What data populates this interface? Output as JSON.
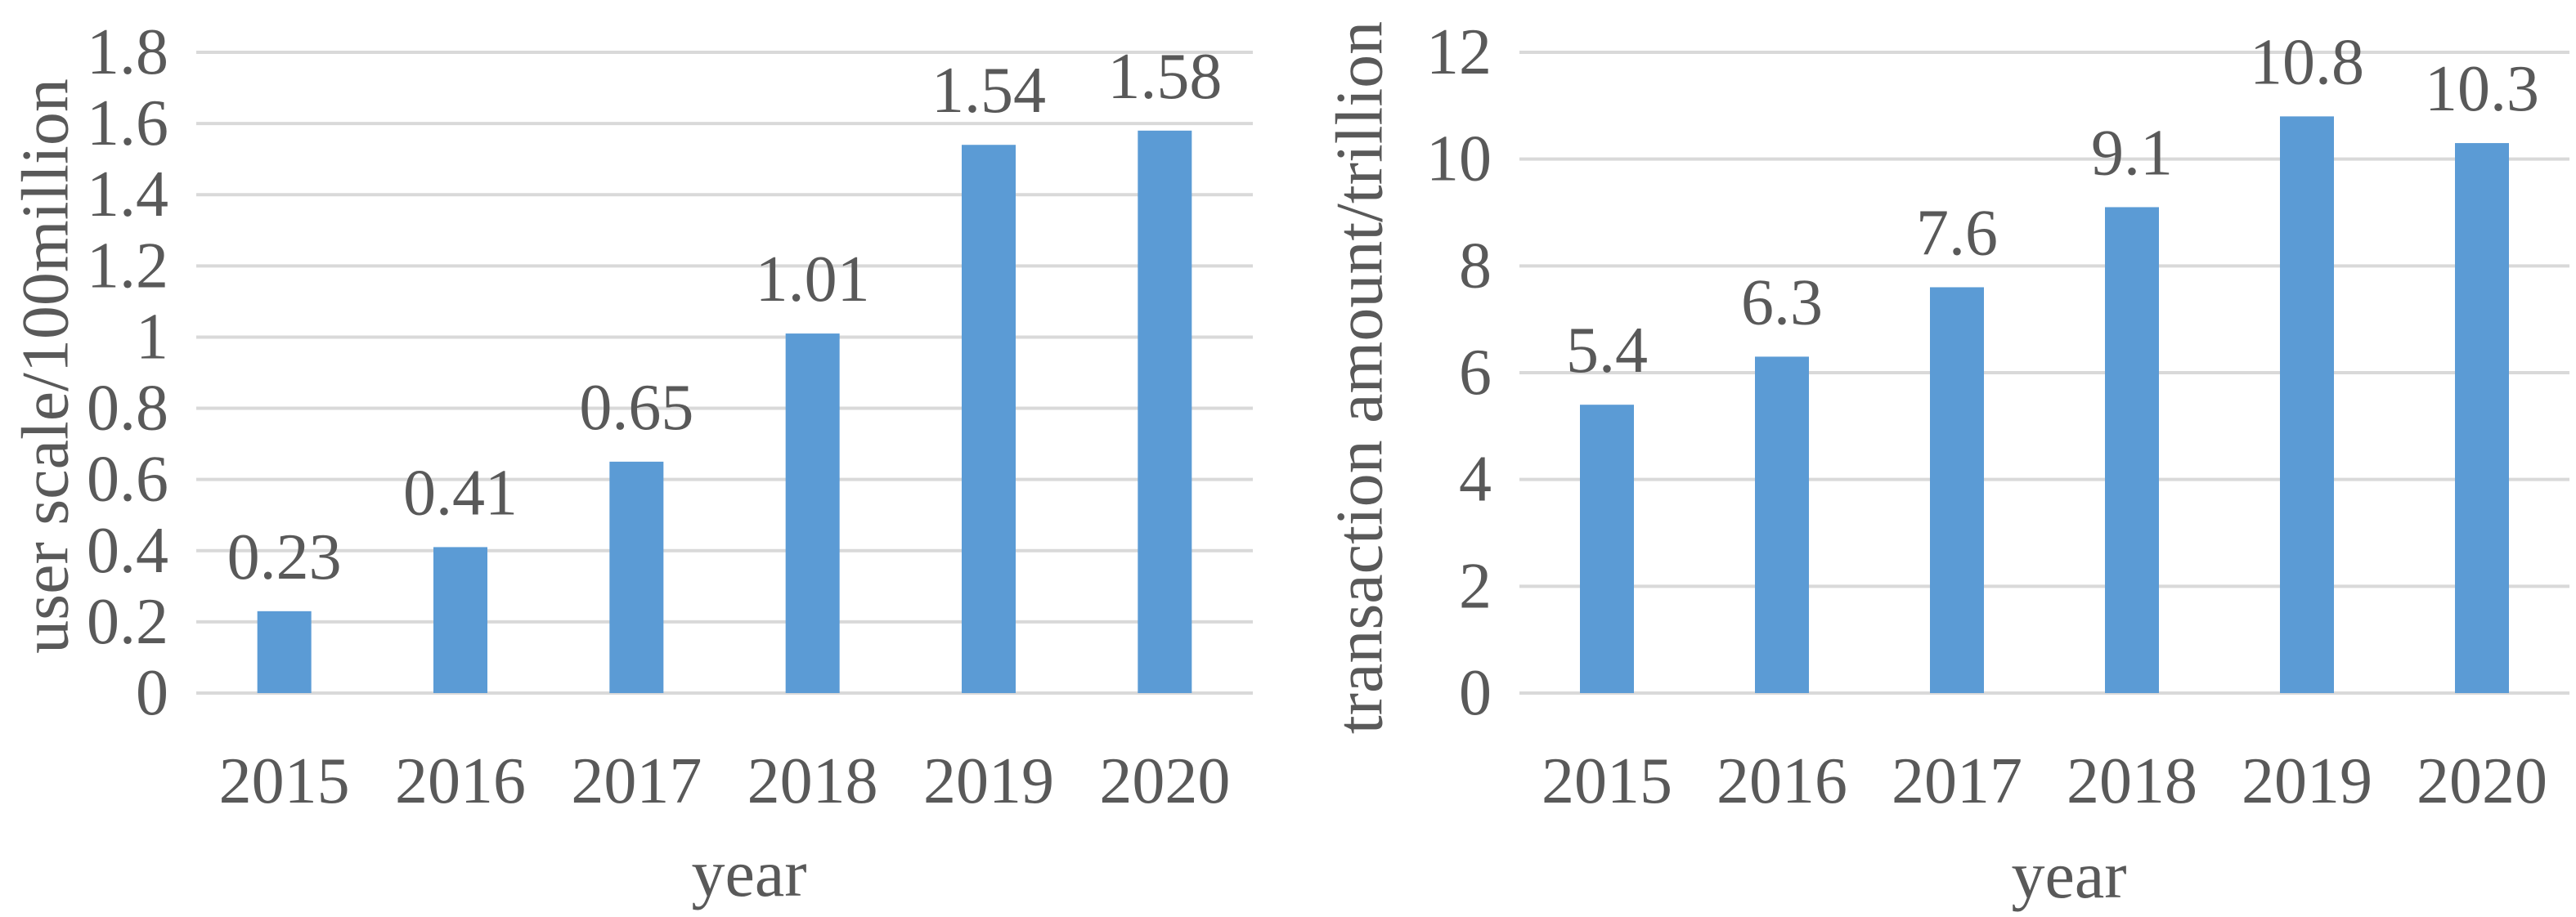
{
  "chart_data": [
    {
      "type": "bar",
      "categories": [
        "2015",
        "2016",
        "2017",
        "2018",
        "2019",
        "2020"
      ],
      "values": [
        0.23,
        0.41,
        0.65,
        1.01,
        1.54,
        1.58
      ],
      "data_labels": [
        "0.23",
        "0.41",
        "0.65",
        "1.01",
        "1.54",
        "1.58"
      ],
      "yticks": [
        "0",
        "0.2",
        "0.4",
        "0.6",
        "0.8",
        "1",
        "1.2",
        "1.4",
        "1.6",
        "1.8"
      ],
      "ylim": [
        0,
        1.8
      ],
      "xlabel": "year",
      "ylabel": "user scale/100million",
      "grid": true,
      "color": "#5b9bd5"
    },
    {
      "type": "bar",
      "categories": [
        "2015",
        "2016",
        "2017",
        "2018",
        "2019",
        "2020"
      ],
      "values": [
        5.4,
        6.3,
        7.6,
        9.1,
        10.8,
        10.3
      ],
      "data_labels": [
        "5.4",
        "6.3",
        "7.6",
        "9.1",
        "10.8",
        "10.3"
      ],
      "yticks": [
        "0",
        "2",
        "4",
        "6",
        "8",
        "10",
        "12"
      ],
      "ylim": [
        0,
        12
      ],
      "xlabel": "year",
      "ylabel": "transaction amount/trillion",
      "grid": true,
      "color": "#5b9bd5"
    }
  ]
}
